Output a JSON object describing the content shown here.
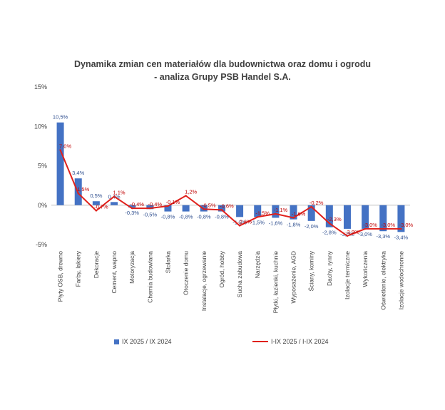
{
  "chart_data": {
    "type": "bar",
    "title": "Dynamika zmian cen materiałów dla budownictwa oraz domu i ogrodu",
    "subtitle": "- analiza Grupy PSB Handel S.A.",
    "categories": [
      "Płyty OSB, drewno",
      "Farby, lakiery",
      "Dekoracje",
      "Cement, wapno",
      "Motoryzacja",
      "Chemia budowlana",
      "Stolarka",
      "Otoczenie domu",
      "Instalacje, ogrzewanie",
      "Ogród, hobby",
      "Sucha zabudowa",
      "Narzędzia",
      "Płytki, łazienki, kuchnie",
      "Wyposażenie, AGD",
      "Ściany, kominy",
      "Dachy, rynny",
      "Izolacje termiczne",
      "Wykończenia",
      "Oświetlenie, elektryka",
      "Izolacje wodochronne"
    ],
    "series": [
      {
        "name": "IX 2025 / IX 2024",
        "type": "bar",
        "color": "#4472c4",
        "values": [
          10.5,
          3.4,
          0.5,
          0.4,
          -0.3,
          -0.5,
          -0.8,
          -0.8,
          -0.8,
          -0.8,
          -1.5,
          -1.5,
          -1.6,
          -1.8,
          -2.0,
          -2.8,
          -3.0,
          -3.0,
          -3.3,
          -3.4
        ],
        "labels": [
          "10,5%",
          "3,4%",
          "0,5%",
          "0,4%",
          "-0,3%",
          "-0,5%",
          "-0,8%",
          "-0,8%",
          "-0,8%",
          "-0,8%",
          "-1,5%",
          "-1,5%",
          "-1,6%",
          "-1,8%",
          "-2,0%",
          "-2,8%",
          "-3,0%",
          "-3,0%",
          "-3,3%",
          "-3,4%"
        ]
      },
      {
        "name": "I-IX 2025 / I-IX 2024",
        "type": "line",
        "color": "#e0201b",
        "values": [
          7.0,
          1.5,
          -0.7,
          1.1,
          -0.4,
          -0.4,
          -0.1,
          1.2,
          -0.5,
          -0.6,
          -2.6,
          -1.5,
          -1.1,
          -1.6,
          -0.2,
          -2.3,
          -3.9,
          -3.0,
          -3.0,
          -3.0
        ],
        "labels": [
          "7,0%",
          "1,5%",
          "-0,7%",
          "1,1%",
          "-0,4%",
          "-0,4%",
          "-0,1%",
          "1,2%",
          "-0,5%",
          "-0,6%",
          "-2,6%",
          "-1,5%",
          "-1,1%",
          "-1,6%",
          "-0,2%",
          "-2,3%",
          "-3,9%",
          "-3,0%",
          "-3,0%",
          "-3,0%"
        ]
      }
    ],
    "ylim": [
      -5,
      15
    ],
    "yticks": [
      -5,
      0,
      5,
      10,
      15
    ],
    "ytick_labels": [
      "-5%",
      "0%",
      "5%",
      "10%",
      "15%"
    ],
    "grid": false,
    "legend_position": "bottom"
  }
}
